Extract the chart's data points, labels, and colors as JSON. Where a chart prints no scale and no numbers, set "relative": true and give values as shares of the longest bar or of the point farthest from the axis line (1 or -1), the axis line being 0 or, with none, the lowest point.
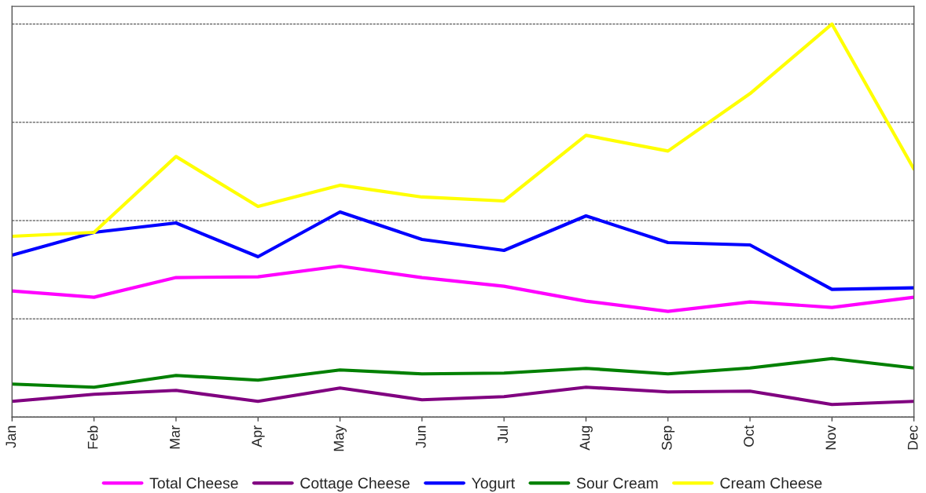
{
  "chart_data": {
    "type": "line",
    "relative": true,
    "grid": "y",
    "legend": "bottom",
    "line_style": "solid",
    "marker": "none",
    "categories": [
      "Jan",
      "Feb",
      "Mar",
      "Apr",
      "May",
      "Jun",
      "Jul",
      "Aug",
      "Sep",
      "Oct",
      "Nov",
      "Dec"
    ],
    "series": [
      {
        "name": "Total Cheese",
        "color": "#ff00ff",
        "values": [
          0.321,
          0.305,
          0.355,
          0.357,
          0.384,
          0.355,
          0.333,
          0.295,
          0.269,
          0.293,
          0.279,
          0.305
        ]
      },
      {
        "name": "Cottage Cheese",
        "color": "#800080",
        "values": [
          0.04,
          0.058,
          0.068,
          0.04,
          0.074,
          0.044,
          0.052,
          0.076,
          0.064,
          0.066,
          0.032,
          0.04
        ]
      },
      {
        "name": "Yogurt",
        "color": "#0000ff",
        "values": [
          0.412,
          0.47,
          0.494,
          0.408,
          0.522,
          0.452,
          0.424,
          0.512,
          0.444,
          0.438,
          0.325,
          0.329
        ]
      },
      {
        "name": "Sour Cream",
        "color": "#008000",
        "values": [
          0.084,
          0.076,
          0.106,
          0.094,
          0.12,
          0.11,
          0.112,
          0.124,
          0.11,
          0.125,
          0.149,
          0.125
        ]
      },
      {
        "name": "Cream Cheese",
        "color": "#ffff00",
        "values": [
          0.46,
          0.47,
          0.663,
          0.536,
          0.59,
          0.56,
          0.55,
          0.717,
          0.677,
          0.823,
          1.0,
          0.631
        ]
      }
    ]
  }
}
